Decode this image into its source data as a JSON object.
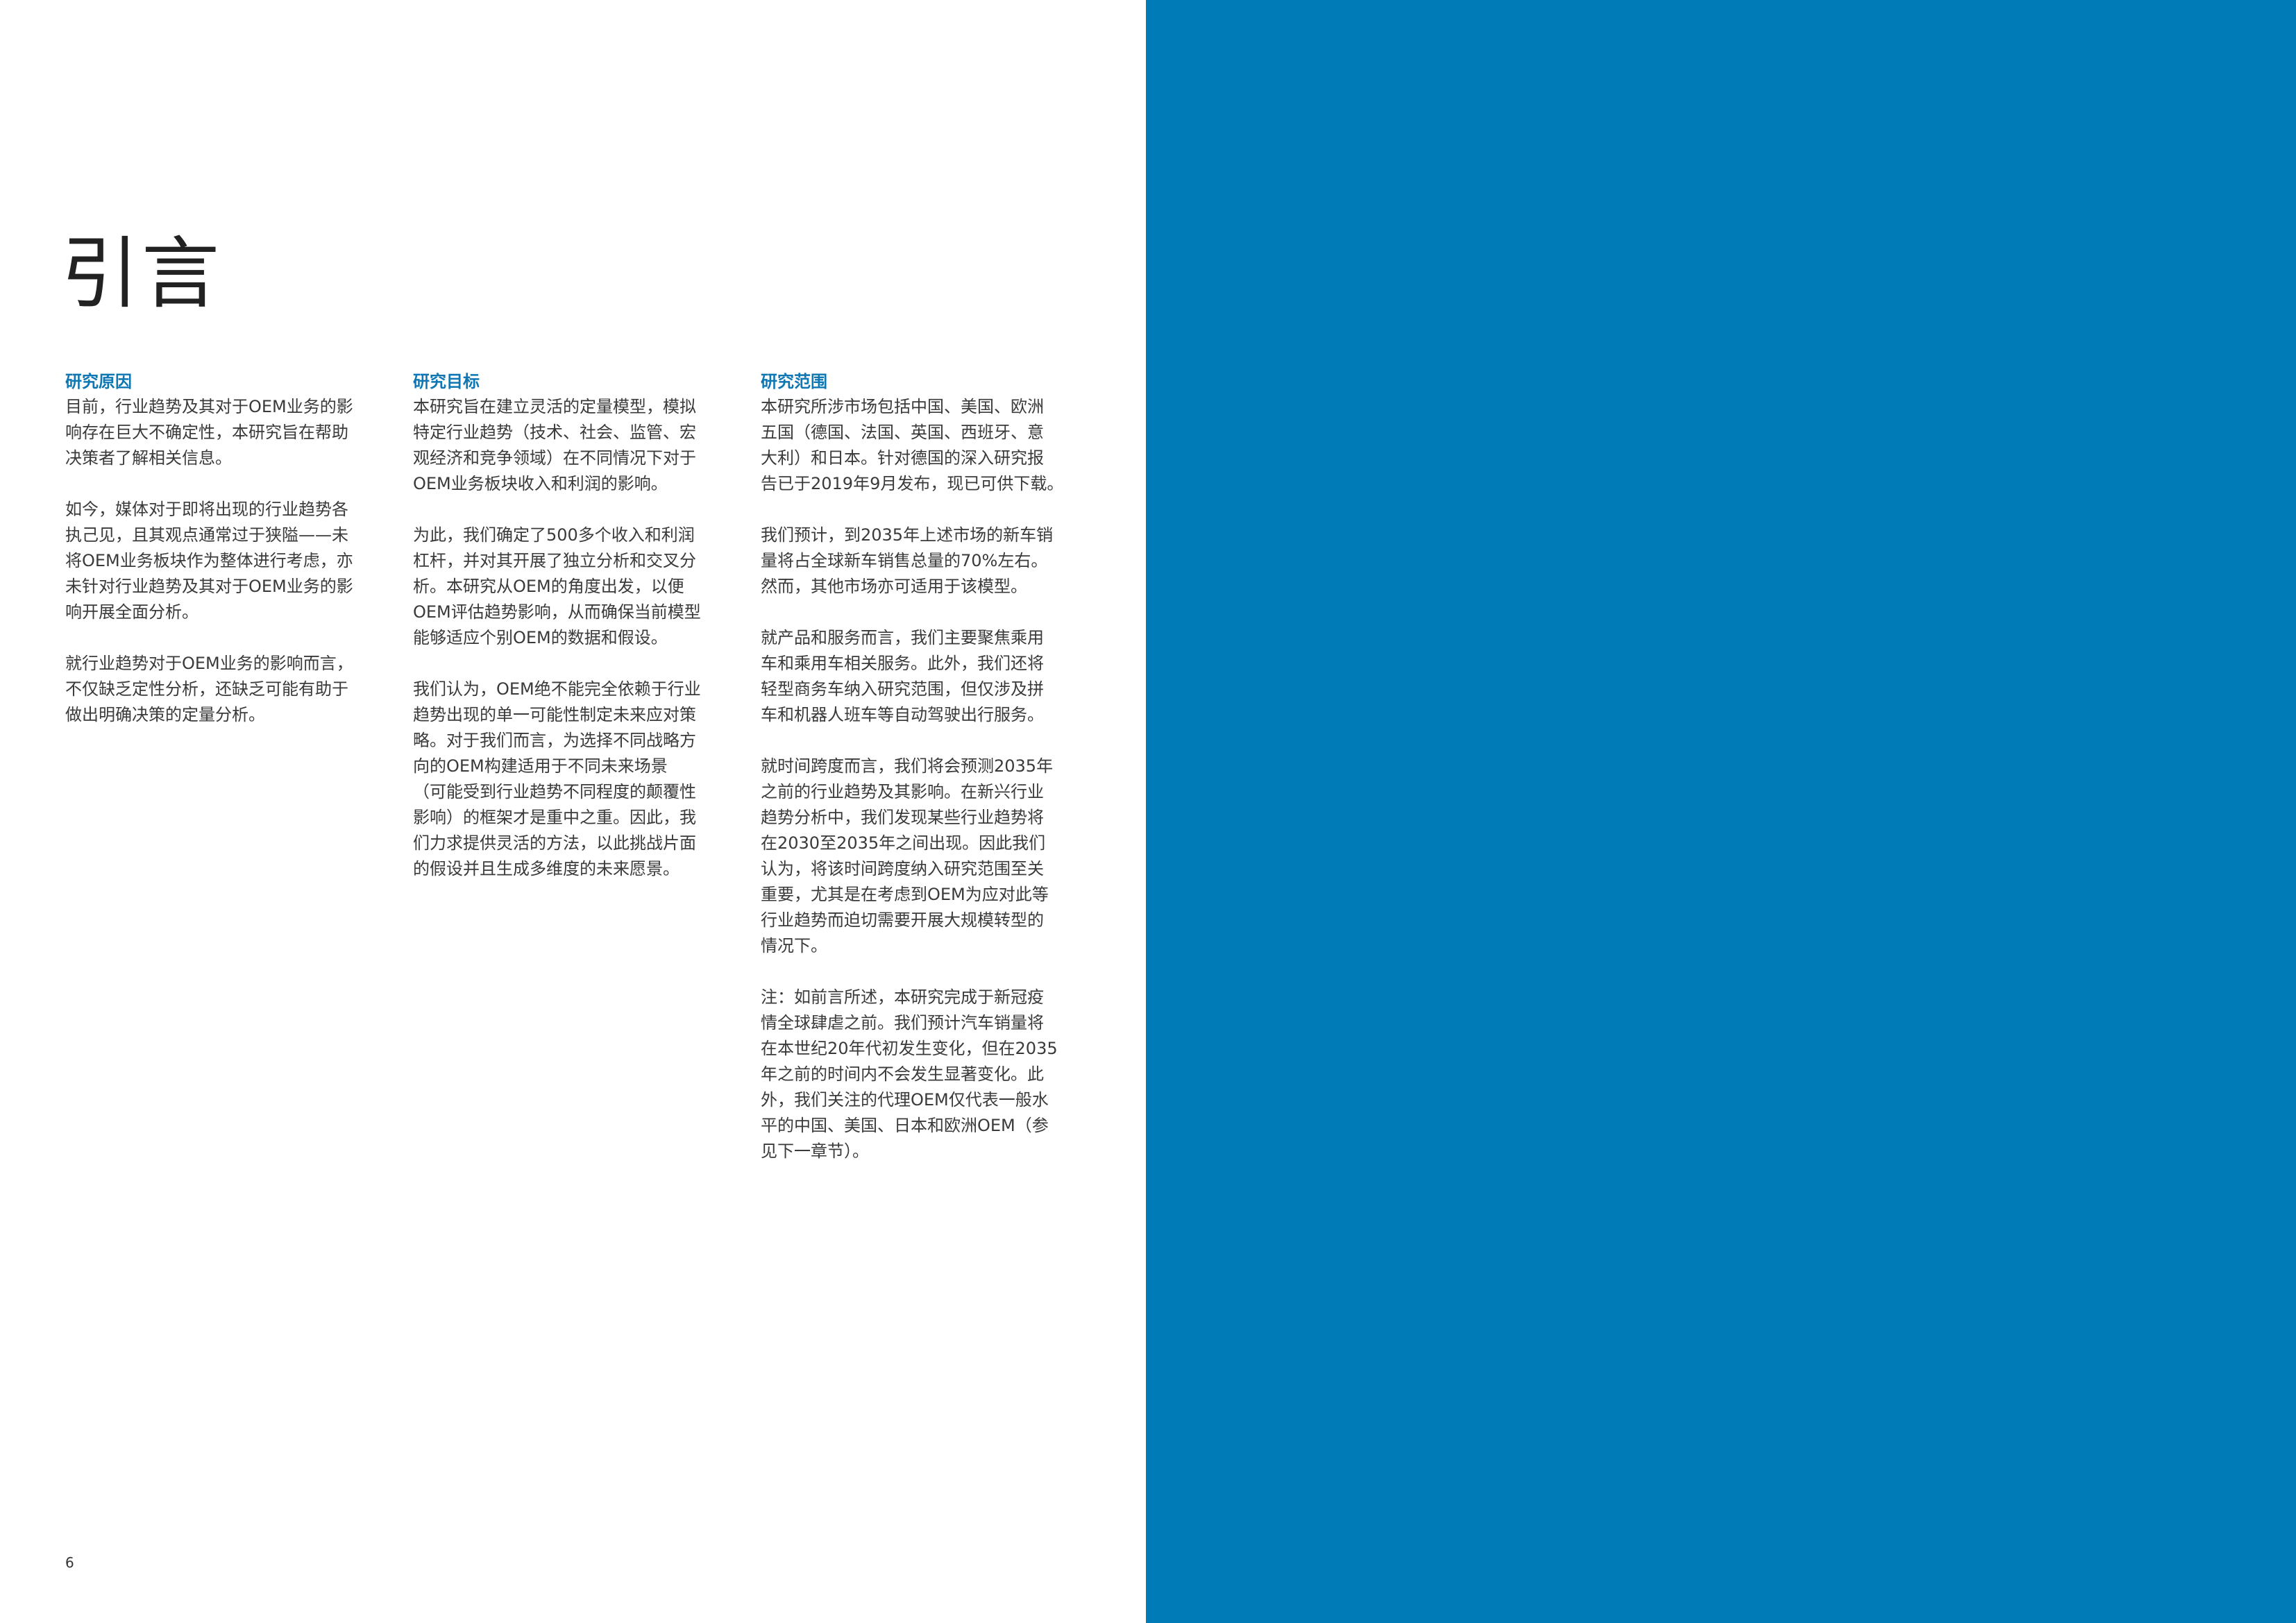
{
  "page": {
    "title": "引言",
    "page_number": "6"
  },
  "colors": {
    "accent": "#0d76b3",
    "right_panel": "#007bb8",
    "text": "#3a3a3a"
  },
  "columns": [
    {
      "heading": "研究原因",
      "paragraphs": [
        "目前，行业趋势及其对于OEM业务的影\n响存在巨大不确定性，本研究旨在帮助\n决策者了解相关信息。",
        "如今，媒体对于即将出现的行业趋势各\n执己见，且其观点通常过于狭隘——未\n将OEM业务板块作为整体进行考虑，亦\n未针对行业趋势及其对于OEM业务的影\n响开展全面分析。",
        "就行业趋势对于OEM业务的影响而言，\n不仅缺乏定性分析，还缺乏可能有助于\n做出明确决策的定量分析。"
      ]
    },
    {
      "heading": "研究目标",
      "paragraphs": [
        "本研究旨在建立灵活的定量模型，模拟\n特定行业趋势（技术、社会、监管、宏\n观经济和竞争领域）在不同情况下对于\nOEM业务板块收入和利润的影响。",
        "为此，我们确定了500多个收入和利润\n杠杆，并对其开展了独立分析和交叉分\n析。本研究从OEM的角度出发，以便\nOEM评估趋势影响，从而确保当前模型\n能够适应个别OEM的数据和假设。",
        "我们认为，OEM绝不能完全依赖于行业\n趋势出现的单一可能性制定未来应对策\n略。对于我们而言，为选择不同战略方\n向的OEM构建适用于不同未来场景\n（可能受到行业趋势不同程度的颠覆性\n影响）的框架才是重中之重。因此，我\n们力求提供灵活的方法，以此挑战片面\n的假设并且生成多维度的未来愿景。"
      ]
    },
    {
      "heading": "研究范围",
      "paragraphs": [
        "本研究所涉市场包括中国、美国、欧洲\n五国（德国、法国、英国、西班牙、意\n大利）和日本。针对德国的深入研究报\n告已于2019年9月发布，现已可供下载。",
        "我们预计，到2035年上述市场的新车销\n量将占全球新车销售总量的70%左右。\n然而，其他市场亦可适用于该模型。",
        "就产品和服务而言，我们主要聚焦乘用\n车和乘用车相关服务。此外，我们还将\n轻型商务车纳入研究范围，但仅涉及拼\n车和机器人班车等自动驾驶出行服务。",
        "就时间跨度而言，我们将会预测2035年\n之前的行业趋势及其影响。在新兴行业\n趋势分析中，我们发现某些行业趋势将\n在2030至2035年之间出现。因此我们\n认为，将该时间跨度纳入研究范围至关\n重要，尤其是在考虑到OEM为应对此等\n行业趋势而迫切需要开展大规模转型的\n情况下。",
        "注：如前言所述，本研究完成于新冠疫\n情全球肆虐之前。我们预计汽车销量将\n在本世纪20年代初发生变化，但在2035\n年之前的时间内不会发生显著变化。此\n外，我们关注的代理OEM仅代表一般水\n平的中国、美国、日本和欧洲OEM（参\n见下一章节）。"
      ]
    }
  ]
}
